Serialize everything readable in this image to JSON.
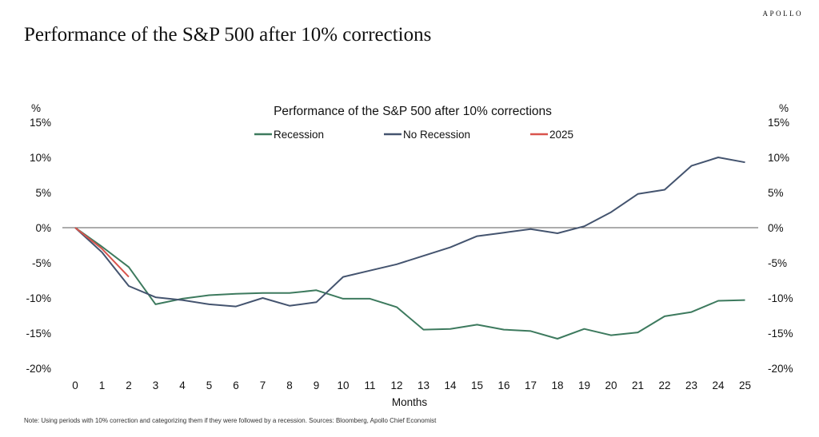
{
  "brand": "APOLLO",
  "page_title": "Performance of the S&P 500 after 10% corrections",
  "note": "Note: Using periods with 10% correction and categorizing them if they were followed by a recession. Sources: Bloomberg, Apollo Chief Economist",
  "chart_data": {
    "type": "line",
    "title": "Performance of the S&P 500 after 10% corrections",
    "xlabel": "Months",
    "ylabel_left": "%",
    "ylabel_right": "%",
    "ylim": [
      -20,
      15
    ],
    "yticks": [
      15,
      10,
      5,
      0,
      -5,
      -10,
      -15,
      -20
    ],
    "x": [
      0,
      1,
      2,
      3,
      4,
      5,
      6,
      7,
      8,
      9,
      10,
      11,
      12,
      13,
      14,
      15,
      16,
      17,
      18,
      19,
      20,
      21,
      22,
      23,
      24,
      25
    ],
    "legend_position": "top-center",
    "series": [
      {
        "name": "Recession",
        "color": "#3d7a5e",
        "x": [
          0,
          1,
          2,
          3,
          4,
          5,
          6,
          7,
          8,
          9,
          10,
          11,
          12,
          13,
          14,
          15,
          16,
          17,
          18,
          19,
          20,
          21,
          22,
          23,
          24,
          25
        ],
        "values": [
          0,
          -2.7,
          -5.6,
          -10.9,
          -10.1,
          -9.6,
          -9.4,
          -9.3,
          -9.3,
          -8.9,
          -10.1,
          -10.1,
          -11.3,
          -14.5,
          -14.4,
          -13.8,
          -14.5,
          -14.7,
          -15.8,
          -14.4,
          -15.3,
          -14.9,
          -12.6,
          -12.0,
          -10.4,
          -10.3
        ]
      },
      {
        "name": "No Recession",
        "color": "#44546f",
        "x": [
          0,
          1,
          2,
          3,
          4,
          5,
          6,
          7,
          8,
          9,
          10,
          11,
          12,
          13,
          14,
          15,
          16,
          17,
          18,
          19,
          20,
          21,
          22,
          23,
          24,
          25
        ],
        "values": [
          0,
          -3.5,
          -8.3,
          -9.9,
          -10.3,
          -10.9,
          -11.2,
          -10.0,
          -11.1,
          -10.6,
          -7.0,
          -6.1,
          -5.2,
          -4.0,
          -2.8,
          -1.2,
          -0.7,
          -0.2,
          -0.8,
          0.2,
          2.2,
          4.8,
          5.4,
          8.8,
          10.0,
          9.3
        ]
      },
      {
        "name": "2025",
        "color": "#d9544d",
        "x": [
          0,
          1,
          2
        ],
        "values": [
          0,
          -3.0,
          -7.0
        ]
      }
    ]
  }
}
